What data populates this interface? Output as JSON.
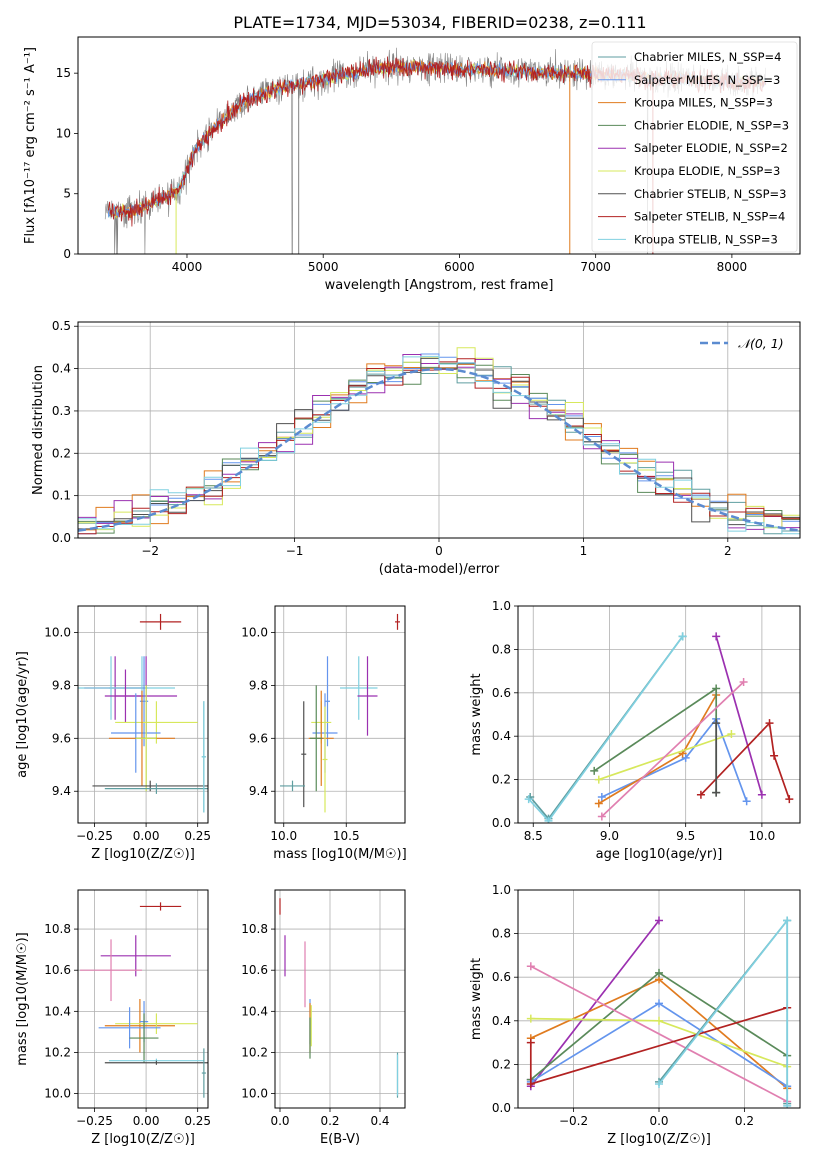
{
  "figure_title": "PLATE=1734, MJD=53034, FIBERID=0238, z=0.111",
  "model_colors": [
    "#5f9ea0",
    "#6495ed",
    "#e07b1f",
    "#5a8a5a",
    "#9b30b0",
    "#d7e85c",
    "#505050",
    "#b22222",
    "#80d0e0"
  ],
  "chart_data": [
    {
      "id": "spectrum",
      "type": "line",
      "xlabel": "wavelength [Angstrom, rest frame]",
      "ylabel": "Flux [fλ10⁻¹⁷ erg cm⁻² s⁻¹ A⁻¹]",
      "xlim": [
        3200,
        8500
      ],
      "ylim": [
        0,
        18
      ],
      "xticks": [
        4000,
        5000,
        6000,
        7000,
        8000
      ],
      "yticks": [
        0,
        5,
        10,
        15
      ],
      "grid": false,
      "legend_position": "right",
      "legend": [
        "Chabrier MILES, N_SSP=4",
        "Salpeter MILES, N_SSP=3",
        "Kroupa MILES, N_SSP=3",
        "Chabrier ELODIE, N_SSP=3",
        "Salpeter ELODIE, N_SSP=2",
        "Kroupa ELODIE, N_SSP=3",
        "Chabrier STELIB, N_SSP=3",
        "Salpeter STELIB, N_SSP=4",
        "Kroupa STELIB, N_SSP=3"
      ],
      "continuum": {
        "x": [
          3400,
          3600,
          3800,
          3950,
          4050,
          4200,
          4400,
          4600,
          4800,
          5000,
          5200,
          5400,
          5600,
          5800,
          6000,
          6200,
          6400,
          6600,
          6800,
          7000,
          7200,
          7400,
          7600,
          7800,
          8000,
          8250
        ],
        "y": [
          3.5,
          3.5,
          4.5,
          5.5,
          8.5,
          10.5,
          12.5,
          13.5,
          14.0,
          14.5,
          15.0,
          15.5,
          15.5,
          15.5,
          15.3,
          15.3,
          15.2,
          15.0,
          15.0,
          14.9,
          14.8,
          14.5,
          14.6,
          14.4,
          14.3,
          14.2
        ]
      }
    },
    {
      "id": "residuals",
      "type": "step",
      "xlabel": "(data-model)/error",
      "ylabel": "Normed distribution",
      "xlim": [
        -2.5,
        2.5
      ],
      "ylim": [
        0,
        0.51
      ],
      "xticks": [
        -2,
        -1,
        0,
        1,
        2
      ],
      "yticks": [
        0.0,
        0.1,
        0.2,
        0.3,
        0.4,
        0.5
      ],
      "grid": true,
      "legend_position": "top-right",
      "gaussian_label": "𝒩(0, 1)",
      "gaussian": {
        "mean": 0,
        "sigma": 1
      }
    },
    {
      "id": "age-vs-Z",
      "type": "errorbar",
      "xlabel": "Z [log10(Z/Z☉)]",
      "ylabel": "age  [log10(age/yr)]",
      "xlim": [
        -0.33,
        0.3
      ],
      "ylim": [
        9.28,
        10.1
      ],
      "xticks": [
        -0.25,
        0.0,
        0.25
      ],
      "yticks": [
        9.4,
        9.6,
        9.8,
        10.0
      ],
      "grid": true,
      "points": [
        {
          "x": 0.07,
          "y": 10.04,
          "xerr": 0.1,
          "yerr": 0.03,
          "c": 7
        },
        {
          "x": -0.02,
          "y": 9.79,
          "xerr": 0.16,
          "yerr": 0.12,
          "c": 8
        },
        {
          "x": -0.15,
          "y": 9.79,
          "xerr": 0.15,
          "yerr": 0.12,
          "c": 4
        },
        {
          "x": -0.17,
          "y": 9.79,
          "xerr": 0.18,
          "yerr": 0.12,
          "c": 8
        },
        {
          "x": 0.0,
          "y": 9.76,
          "xerr": 0.15,
          "yerr": 0.15,
          "c": 4
        },
        {
          "x": -0.1,
          "y": 9.76,
          "xerr": 0.1,
          "yerr": 0.1,
          "c": 4
        },
        {
          "x": -0.01,
          "y": 9.74,
          "xerr": 0.02,
          "yerr": 0.17,
          "c": 1
        },
        {
          "x": 0.05,
          "y": 9.66,
          "xerr": 0.2,
          "yerr": 0.08,
          "c": 5
        },
        {
          "x": -0.05,
          "y": 9.62,
          "xerr": 0.12,
          "yerr": 0.15,
          "c": 1
        },
        {
          "x": -0.02,
          "y": 9.6,
          "xerr": 0.16,
          "yerr": 0.18,
          "c": 2
        },
        {
          "x": 0.0,
          "y": 9.6,
          "xerr": 0.05,
          "yerr": 0.2,
          "c": 3
        },
        {
          "x": 0.0,
          "y": 9.6,
          "xerr": 0.05,
          "yerr": 0.2,
          "c": 5
        },
        {
          "x": 0.02,
          "y": 9.42,
          "xerr": 0.28,
          "yerr": 0.02,
          "c": 6
        },
        {
          "x": 0.05,
          "y": 9.41,
          "xerr": 0.25,
          "yerr": 0.02,
          "c": 0
        },
        {
          "x": 0.28,
          "y": 9.53,
          "xerr": 0.01,
          "yerr": 0.21,
          "c": 0
        },
        {
          "x": 0.28,
          "y": 9.53,
          "xerr": 0.01,
          "yerr": 0.21,
          "c": 8
        }
      ]
    },
    {
      "id": "age-vs-mass",
      "type": "errorbar",
      "xlabel": "mass [log10(M/M☉)]",
      "ylabel": "",
      "xlim": [
        9.93,
        10.97
      ],
      "ylim": [
        9.28,
        10.1
      ],
      "xticks": [
        10.0,
        10.5
      ],
      "yticks": [
        9.4,
        9.6,
        9.8,
        10.0
      ],
      "grid": true,
      "points": [
        {
          "x": 10.91,
          "y": 10.04,
          "xerr": 0.02,
          "yerr": 0.03,
          "c": 7
        },
        {
          "x": 10.6,
          "y": 9.79,
          "xerr": 0.15,
          "yerr": 0.12,
          "c": 8
        },
        {
          "x": 10.67,
          "y": 9.76,
          "xerr": 0.08,
          "yerr": 0.15,
          "c": 4
        },
        {
          "x": 10.35,
          "y": 9.74,
          "xerr": 0.02,
          "yerr": 0.17,
          "c": 1
        },
        {
          "x": 10.3,
          "y": 9.66,
          "xerr": 0.08,
          "yerr": 0.08,
          "c": 5
        },
        {
          "x": 10.33,
          "y": 9.62,
          "xerr": 0.1,
          "yerr": 0.15,
          "c": 1
        },
        {
          "x": 10.3,
          "y": 9.6,
          "xerr": 0.1,
          "yerr": 0.18,
          "c": 2
        },
        {
          "x": 10.26,
          "y": 9.6,
          "xerr": 0.05,
          "yerr": 0.2,
          "c": 3
        },
        {
          "x": 10.33,
          "y": 9.52,
          "xerr": 0.02,
          "yerr": 0.2,
          "c": 5
        },
        {
          "x": 10.16,
          "y": 9.54,
          "xerr": 0.02,
          "yerr": 0.2,
          "c": 6
        },
        {
          "x": 10.07,
          "y": 9.42,
          "xerr": 0.1,
          "yerr": 0.02,
          "c": 0
        }
      ]
    },
    {
      "id": "weight-vs-age",
      "type": "line",
      "xlabel": "age  [log10(age/yr)]",
      "ylabel": "mass weight",
      "xlim": [
        8.4,
        10.25
      ],
      "ylim": [
        0,
        1.0
      ],
      "xticks": [
        8.5,
        9.0,
        9.5,
        10.0
      ],
      "yticks": [
        0.0,
        0.2,
        0.4,
        0.6,
        0.8,
        1.0
      ],
      "grid": true,
      "series": [
        {
          "c": 0,
          "x": [
            8.48,
            8.6,
            9.48
          ],
          "y": [
            0.12,
            0.02,
            0.86
          ]
        },
        {
          "c": 8,
          "x": [
            8.47,
            8.6,
            9.48
          ],
          "y": [
            0.11,
            0.01,
            0.86
          ]
        },
        {
          "c": 1,
          "x": [
            8.95,
            9.5,
            9.7,
            9.9
          ],
          "y": [
            0.12,
            0.3,
            0.48,
            0.1
          ]
        },
        {
          "c": 2,
          "x": [
            8.93,
            9.48,
            9.7
          ],
          "y": [
            0.09,
            0.32,
            0.59
          ]
        },
        {
          "c": 3,
          "x": [
            8.9,
            9.7,
            9.7
          ],
          "y": [
            0.24,
            0.62,
            0.14
          ]
        },
        {
          "c": 4,
          "x": [
            9.7,
            10.0
          ],
          "y": [
            0.86,
            0.13
          ]
        },
        {
          "c": 5,
          "x": [
            8.93,
            9.8
          ],
          "y": [
            0.2,
            0.41
          ]
        },
        {
          "c": 7,
          "x": [
            9.6,
            10.05,
            10.08,
            10.18
          ],
          "y": [
            0.13,
            0.46,
            0.31,
            0.11
          ]
        },
        {
          "c": 6,
          "x": [
            9.7,
            9.7
          ],
          "y": [
            0.46,
            0.14
          ]
        },
        {
          "c": 9,
          "x": [
            8.95,
            9.88
          ],
          "y": [
            0.03,
            0.65
          ]
        }
      ]
    },
    {
      "id": "mass-vs-Z",
      "type": "errorbar",
      "xlabel": "Z [log10(Z/Z☉)]",
      "ylabel": "mass [log10(M/M☉)]",
      "xlim": [
        -0.33,
        0.3
      ],
      "ylim": [
        9.93,
        10.99
      ],
      "xticks": [
        -0.25,
        0.0,
        0.25
      ],
      "yticks": [
        10.0,
        10.2,
        10.4,
        10.6,
        10.8
      ],
      "grid": true,
      "points": [
        {
          "x": 0.07,
          "y": 10.91,
          "xerr": 0.1,
          "yerr": 0.02,
          "c": 7
        },
        {
          "x": -0.05,
          "y": 10.67,
          "xerr": 0.17,
          "yerr": 0.1,
          "c": 4
        },
        {
          "x": -0.17,
          "y": 10.6,
          "xerr": 0.15,
          "yerr": 0.15,
          "c": 9
        },
        {
          "x": -0.03,
          "y": 10.33,
          "xerr": 0.17,
          "yerr": 0.13,
          "c": 2
        },
        {
          "x": 0.05,
          "y": 10.34,
          "xerr": 0.2,
          "yerr": 0.05,
          "c": 5
        },
        {
          "x": -0.08,
          "y": 10.32,
          "xerr": 0.15,
          "yerr": 0.1,
          "c": 1
        },
        {
          "x": -0.01,
          "y": 10.35,
          "xerr": 0.02,
          "yerr": 0.1,
          "c": 1
        },
        {
          "x": -0.01,
          "y": 10.27,
          "xerr": 0.07,
          "yerr": 0.12,
          "c": 3
        },
        {
          "x": 0.05,
          "y": 10.16,
          "xerr": 0.23,
          "yerr": 0.01,
          "c": 8
        },
        {
          "x": 0.05,
          "y": 10.15,
          "xerr": 0.25,
          "yerr": 0.01,
          "c": 6
        },
        {
          "x": 0.28,
          "y": 10.1,
          "xerr": 0.01,
          "yerr": 0.12,
          "c": 0
        }
      ]
    },
    {
      "id": "mass-vs-ebv",
      "type": "errorbar",
      "xlabel": "E(B-V)",
      "ylabel": "",
      "xlim": [
        -0.02,
        0.5
      ],
      "ylim": [
        9.93,
        10.99
      ],
      "xticks": [
        0.0,
        0.2,
        0.4
      ],
      "yticks": [
        10.0,
        10.2,
        10.4,
        10.6,
        10.8
      ],
      "grid": true,
      "points": [
        {
          "x": 0.0,
          "y": 10.91,
          "xerr": 0.0,
          "yerr": 0.04,
          "c": 7
        },
        {
          "x": 0.02,
          "y": 10.67,
          "xerr": 0.0,
          "yerr": 0.1,
          "c": 4
        },
        {
          "x": 0.1,
          "y": 10.58,
          "xerr": 0.0,
          "yerr": 0.16,
          "c": 9
        },
        {
          "x": 0.12,
          "y": 10.35,
          "xerr": 0.0,
          "yerr": 0.11,
          "c": 1
        },
        {
          "x": 0.12,
          "y": 10.32,
          "xerr": 0.0,
          "yerr": 0.12,
          "c": 2
        },
        {
          "x": 0.125,
          "y": 10.33,
          "xerr": 0.0,
          "yerr": 0.1,
          "c": 5
        },
        {
          "x": 0.12,
          "y": 10.27,
          "xerr": 0.0,
          "yerr": 0.1,
          "c": 3
        },
        {
          "x": 0.47,
          "y": 10.09,
          "xerr": 0.0,
          "yerr": 0.11,
          "c": 0
        },
        {
          "x": 0.47,
          "y": 10.09,
          "xerr": 0.0,
          "yerr": 0.1,
          "c": 8
        }
      ]
    },
    {
      "id": "weight-vs-Z",
      "type": "line",
      "xlabel": "Z [log10(Z/Z☉)]",
      "ylabel": "mass weight",
      "xlim": [
        -0.33,
        0.33
      ],
      "ylim": [
        0,
        1.0
      ],
      "xticks": [
        -0.2,
        0.0,
        0.2
      ],
      "yticks": [
        0.0,
        0.2,
        0.4,
        0.6,
        0.8,
        1.0
      ],
      "grid": true,
      "series": [
        {
          "c": 4,
          "x": [
            -0.3,
            -0.3,
            0.0
          ],
          "y": [
            0.13,
            0.1,
            0.86
          ]
        },
        {
          "c": 2,
          "x": [
            -0.3,
            0.0,
            0.3
          ],
          "y": [
            0.32,
            0.59,
            0.09
          ]
        },
        {
          "c": 3,
          "x": [
            -0.3,
            0.0,
            0.3
          ],
          "y": [
            0.13,
            0.62,
            0.24
          ]
        },
        {
          "c": 1,
          "x": [
            -0.3,
            0.0,
            0.3
          ],
          "y": [
            0.12,
            0.48,
            0.1
          ]
        },
        {
          "c": 5,
          "x": [
            -0.3,
            0.0,
            0.3
          ],
          "y": [
            0.41,
            0.4,
            0.19
          ]
        },
        {
          "c": 9,
          "x": [
            -0.3,
            0.3
          ],
          "y": [
            0.65,
            0.03
          ]
        },
        {
          "c": 7,
          "x": [
            -0.3,
            -0.3,
            0.3
          ],
          "y": [
            0.3,
            0.11,
            0.46
          ]
        },
        {
          "c": 0,
          "x": [
            0.0,
            0.3,
            0.3
          ],
          "y": [
            0.12,
            0.86,
            0.02
          ]
        },
        {
          "c": 8,
          "x": [
            0.0,
            0.3,
            0.3
          ],
          "y": [
            0.11,
            0.86,
            0.01
          ]
        }
      ]
    }
  ]
}
